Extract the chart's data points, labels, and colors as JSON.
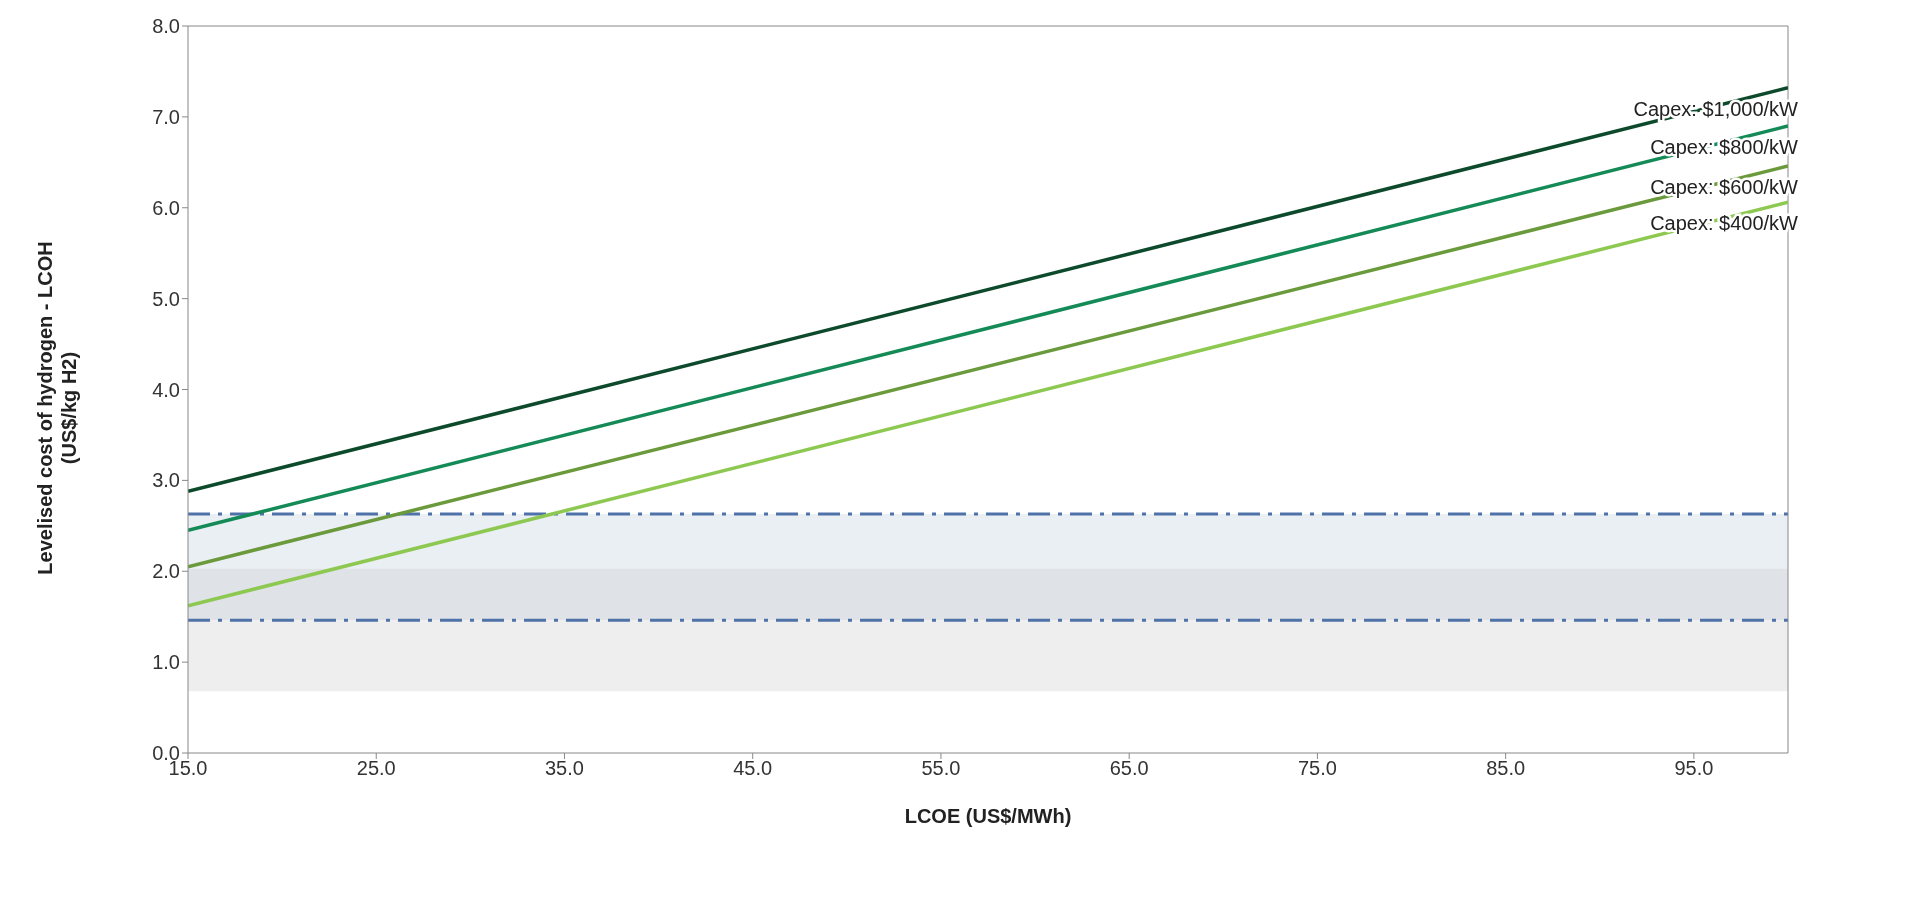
{
  "chart_data": {
    "type": "line",
    "xlabel": "LCOE (US$/MWh)",
    "ylabel": "Levelised cost of hydrogen - LCOH\n(US$/kg H2)",
    "x": [
      15,
      100
    ],
    "series": [
      {
        "name": "Capex: $1,000/kW",
        "color": "#0d4a2c",
        "values": [
          2.88,
          7.32
        ]
      },
      {
        "name": "Capex: $800/kW",
        "color": "#148a57",
        "values": [
          2.45,
          6.9
        ]
      },
      {
        "name": "Capex: $600/kW",
        "color": "#6b9a3c",
        "values": [
          2.05,
          6.46
        ]
      },
      {
        "name": "Capex: $400/kW",
        "color": "#8dc850",
        "values": [
          1.62,
          6.06
        ]
      }
    ],
    "xlim": [
      15,
      100
    ],
    "xticks": [
      {
        "value": 15,
        "label": "15.0"
      },
      {
        "value": 25,
        "label": "25.0"
      },
      {
        "value": 35,
        "label": "35.0"
      },
      {
        "value": 45,
        "label": "45.0"
      },
      {
        "value": 55,
        "label": "55.0"
      },
      {
        "value": 65,
        "label": "65.0"
      },
      {
        "value": 75,
        "label": "75.0"
      },
      {
        "value": 85,
        "label": "85.0"
      },
      {
        "value": 95,
        "label": "95.0"
      }
    ],
    "ylim": [
      0,
      8
    ],
    "yticks": [
      {
        "value": 0,
        "label": "0.0"
      },
      {
        "value": 1,
        "label": "1.0"
      },
      {
        "value": 2,
        "label": "2.0"
      },
      {
        "value": 3,
        "label": "3.0"
      },
      {
        "value": 4,
        "label": "4.0"
      },
      {
        "value": 5,
        "label": "5.0"
      },
      {
        "value": 6,
        "label": "6.0"
      },
      {
        "value": 7,
        "label": "7.0"
      },
      {
        "value": 8,
        "label": "8.0"
      }
    ],
    "bands": [
      {
        "axis": "y",
        "from": 2.03,
        "to": 2.63,
        "color": "#eaeff4"
      },
      {
        "axis": "y",
        "from": 1.46,
        "to": 2.03,
        "color": "#dfe2e7"
      },
      {
        "axis": "y",
        "from": 0.68,
        "to": 1.46,
        "color": "#eeeeee"
      }
    ],
    "ref_lines": [
      {
        "axis": "y",
        "value": 2.63,
        "color": "#4f73a8",
        "line_style": "dashed"
      },
      {
        "axis": "y",
        "value": 1.46,
        "color": "#4f73a8",
        "line_style": "dashed"
      }
    ],
    "grid": false,
    "legend": false,
    "marker": "none",
    "line_style": "solid"
  }
}
